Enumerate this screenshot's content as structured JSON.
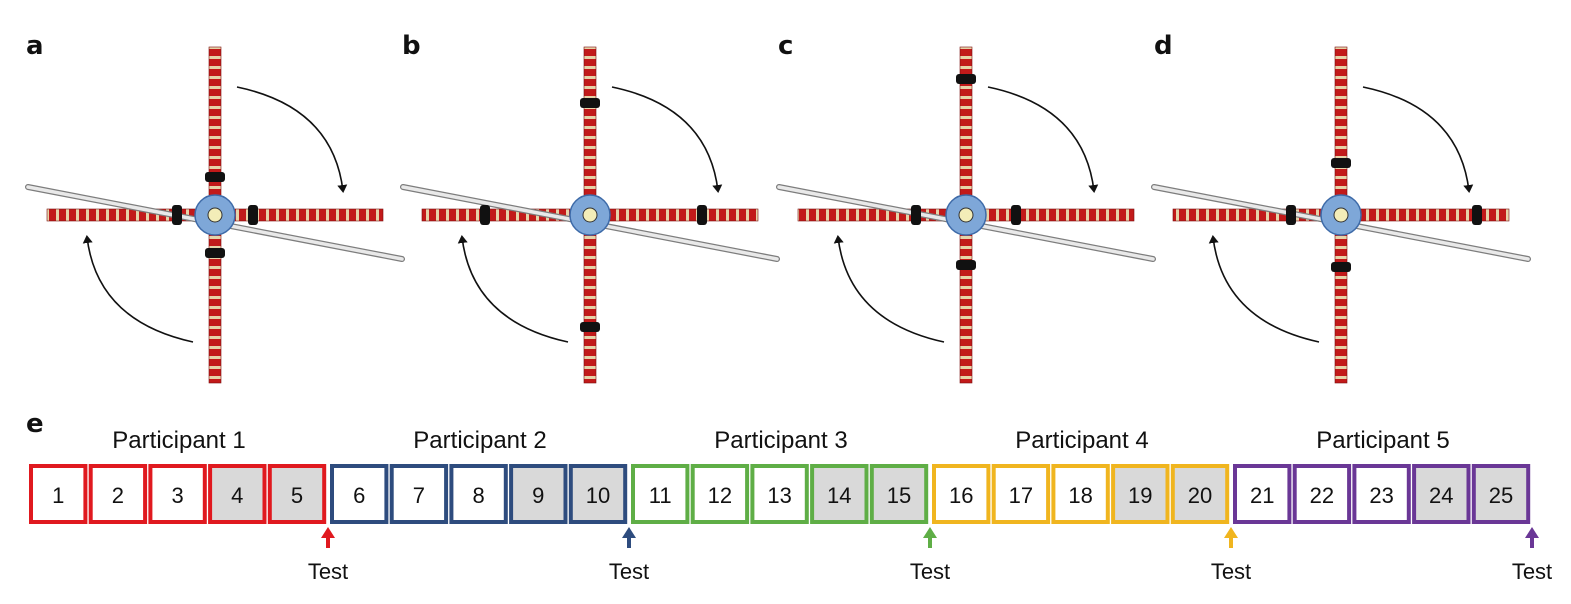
{
  "panels": [
    {
      "label": "a"
    },
    {
      "label": "b"
    },
    {
      "label": "c"
    },
    {
      "label": "d"
    }
  ],
  "sequence": {
    "label": "e",
    "participants": [
      {
        "name": "Participant 1",
        "color": "#e0191f",
        "trials": [
          "1",
          "2",
          "3",
          "4",
          "5"
        ],
        "shaded": [
          false,
          false,
          false,
          true,
          true
        ]
      },
      {
        "name": "Participant 2",
        "color": "#2e4c7e",
        "trials": [
          "6",
          "7",
          "8",
          "9",
          "10"
        ],
        "shaded": [
          false,
          false,
          false,
          true,
          true
        ]
      },
      {
        "name": "Participant 3",
        "color": "#5fae46",
        "trials": [
          "11",
          "12",
          "13",
          "14",
          "15"
        ],
        "shaded": [
          false,
          false,
          false,
          true,
          true
        ]
      },
      {
        "name": "Participant 4",
        "color": "#f0b51f",
        "trials": [
          "16",
          "17",
          "18",
          "19",
          "20"
        ],
        "shaded": [
          false,
          false,
          false,
          true,
          true
        ]
      },
      {
        "name": "Participant 5",
        "color": "#6a3796",
        "trials": [
          "21",
          "22",
          "23",
          "24",
          "25"
        ],
        "shaded": [
          false,
          false,
          false,
          true,
          true
        ]
      }
    ],
    "test_label": "Test",
    "shade_color": "#d9d9d9"
  },
  "colors": {
    "rail_red": "#c21a1a",
    "rail_tan": "#e6d3a8",
    "hub": "#7ea7d8",
    "hub_center": "#f3edb8",
    "block": "#111111",
    "rod": "#c8c8c8"
  }
}
